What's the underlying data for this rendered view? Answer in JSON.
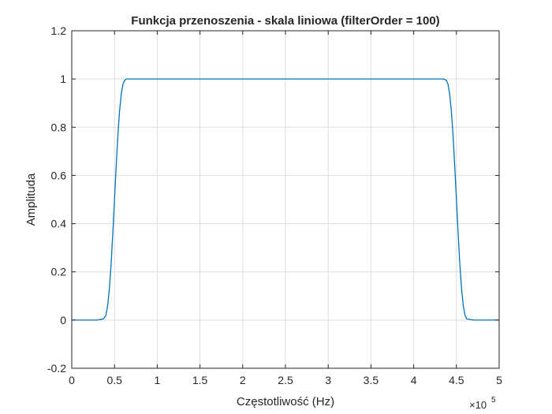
{
  "chart_data": {
    "type": "line",
    "title": "Funkcja przenoszenia - skala liniowa (filterOrder = 100)",
    "xlabel": "Częstotliwość (Hz)",
    "ylabel": "Amplituda",
    "x_exponent_label": {
      "base": "×10",
      "exp": "5"
    },
    "xlim": [
      0,
      500000
    ],
    "ylim": [
      -0.2,
      1.2
    ],
    "x_ticks": [
      0,
      50000,
      100000,
      150000,
      200000,
      250000,
      300000,
      350000,
      400000,
      450000,
      500000
    ],
    "x_tick_labels": [
      "0",
      "0.5",
      "1",
      "1.5",
      "2",
      "2.5",
      "3",
      "3.5",
      "4",
      "4.5",
      "5"
    ],
    "y_ticks": [
      -0.2,
      0,
      0.2,
      0.4,
      0.6,
      0.8,
      1,
      1.2
    ],
    "y_tick_labels": [
      "-0.2",
      "0",
      "0.2",
      "0.4",
      "0.6",
      "0.8",
      "1",
      "1.2"
    ],
    "grid": true,
    "series": [
      {
        "color": "#0072BD",
        "x": [
          0,
          30000,
          37000,
          40000,
          42000,
          44000,
          46000,
          48000,
          50000,
          52000,
          54000,
          56000,
          58000,
          60000,
          62000,
          64000,
          100000,
          200000,
          300000,
          400000,
          435000,
          438000,
          440000,
          442000,
          444000,
          446000,
          448000,
          450000,
          452000,
          454000,
          456000,
          458000,
          460000,
          462000,
          470000,
          500000
        ],
        "y": [
          0,
          0,
          0.005,
          0.02,
          0.06,
          0.13,
          0.23,
          0.36,
          0.5,
          0.64,
          0.77,
          0.87,
          0.94,
          0.98,
          0.995,
          1,
          1,
          1,
          1,
          1,
          1,
          0.995,
          0.98,
          0.94,
          0.87,
          0.77,
          0.64,
          0.5,
          0.36,
          0.23,
          0.13,
          0.06,
          0.02,
          0.005,
          0,
          0
        ]
      }
    ]
  }
}
